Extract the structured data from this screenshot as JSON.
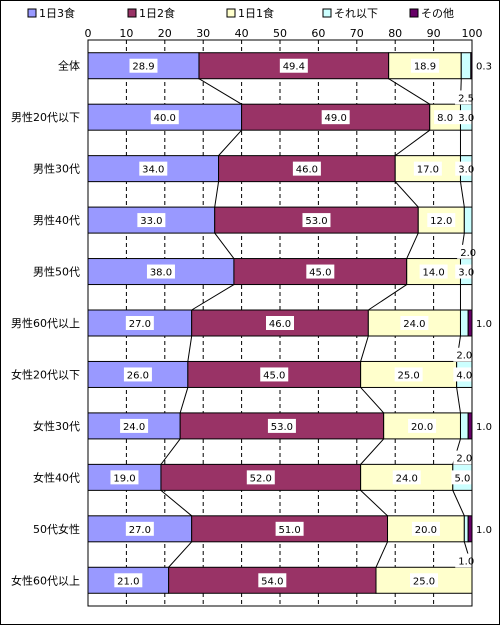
{
  "colors": {
    "s1": "#9999ff",
    "s2": "#993366",
    "s3": "#ffffcc",
    "s4": "#ccffff",
    "s5": "#660066",
    "frame": "#000000",
    "grid": "#000000",
    "label_bg": "#ffffff"
  },
  "chart_data": {
    "type": "bar",
    "orientation": "horizontal",
    "stacked": true,
    "title": "",
    "xlabel": "",
    "ylabel": "",
    "xlim": [
      0,
      100
    ],
    "x_ticks": [
      "0",
      "10",
      "20",
      "30",
      "40",
      "50",
      "60",
      "70",
      "80",
      "90",
      "100"
    ],
    "grid": "vertical-dashed",
    "legend_position": "top",
    "categories": [
      "全体",
      "男性20代以下",
      "男性30代",
      "男性40代",
      "男性50代",
      "男性60代以上",
      "女性20代以下",
      "女性30代",
      "女性40代",
      "50代女性",
      "女性60代以上"
    ],
    "series": [
      {
        "name": "1日3食",
        "values": [
          28.9,
          40.0,
          34.0,
          33.0,
          38.0,
          27.0,
          26.0,
          24.0,
          19.0,
          27.0,
          21.0
        ]
      },
      {
        "name": "1日2食",
        "values": [
          49.4,
          49.0,
          46.0,
          53.0,
          45.0,
          46.0,
          45.0,
          53.0,
          52.0,
          51.0,
          54.0
        ]
      },
      {
        "name": "1日1食",
        "values": [
          18.9,
          8.0,
          17.0,
          12.0,
          14.0,
          24.0,
          25.0,
          20.0,
          24.0,
          20.0,
          25.0
        ]
      },
      {
        "name": "それ以下",
        "values": [
          2.5,
          3.0,
          3.0,
          2.0,
          3.0,
          2.0,
          4.0,
          2.0,
          5.0,
          1.0,
          0.0
        ]
      },
      {
        "name": "その他",
        "values": [
          0.3,
          0.0,
          0.0,
          0.0,
          0.0,
          1.0,
          0.0,
          1.0,
          0.0,
          1.0,
          0.0
        ]
      }
    ],
    "data_labels": [
      [
        "28.9",
        "49.4",
        "18.9",
        "2.5",
        "0.3"
      ],
      [
        "40.0",
        "49.0",
        "8.0",
        "3.0",
        ""
      ],
      [
        "34.0",
        "46.0",
        "17.0",
        "3.0",
        ""
      ],
      [
        "33.0",
        "53.0",
        "12.0",
        "2.0",
        ""
      ],
      [
        "38.0",
        "45.0",
        "14.0",
        "3.0",
        ""
      ],
      [
        "27.0",
        "46.0",
        "24.0",
        "2.0",
        "1.0"
      ],
      [
        "26.0",
        "45.0",
        "25.0",
        "4.0",
        ""
      ],
      [
        "24.0",
        "53.0",
        "20.0",
        "2.0",
        "1.0"
      ],
      [
        "19.0",
        "52.0",
        "24.0",
        "5.0",
        ""
      ],
      [
        "27.0",
        "51.0",
        "20.0",
        "1.0",
        "1.0"
      ],
      [
        "21.0",
        "54.0",
        "25.0",
        "",
        ""
      ]
    ],
    "series_lines": true
  }
}
